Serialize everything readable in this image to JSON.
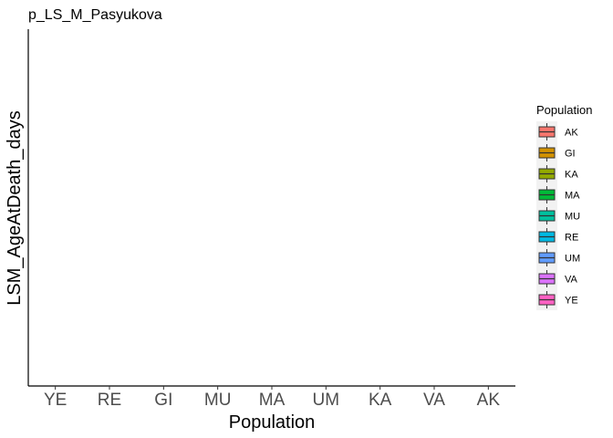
{
  "chart_data": {
    "type": "box",
    "title": "p_LS_M_Pasyukova",
    "xlabel": "Population",
    "ylabel": "LSM_AgeAtDeath_days",
    "categories": [
      "YE",
      "RE",
      "GI",
      "MU",
      "MA",
      "UM",
      "KA",
      "VA",
      "AK"
    ],
    "series": [],
    "grid": false,
    "legend": {
      "title": "Population",
      "placement": "right",
      "entries": [
        {
          "label": "AK",
          "color": "#F8766D"
        },
        {
          "label": "GI",
          "color": "#D39200"
        },
        {
          "label": "KA",
          "color": "#93AA00"
        },
        {
          "label": "MA",
          "color": "#00BA38"
        },
        {
          "label": "MU",
          "color": "#00C19F"
        },
        {
          "label": "RE",
          "color": "#00B9E3"
        },
        {
          "label": "UM",
          "color": "#619CFF"
        },
        {
          "label": "VA",
          "color": "#DB72FB"
        },
        {
          "label": "YE",
          "color": "#FF61C3"
        }
      ]
    }
  }
}
